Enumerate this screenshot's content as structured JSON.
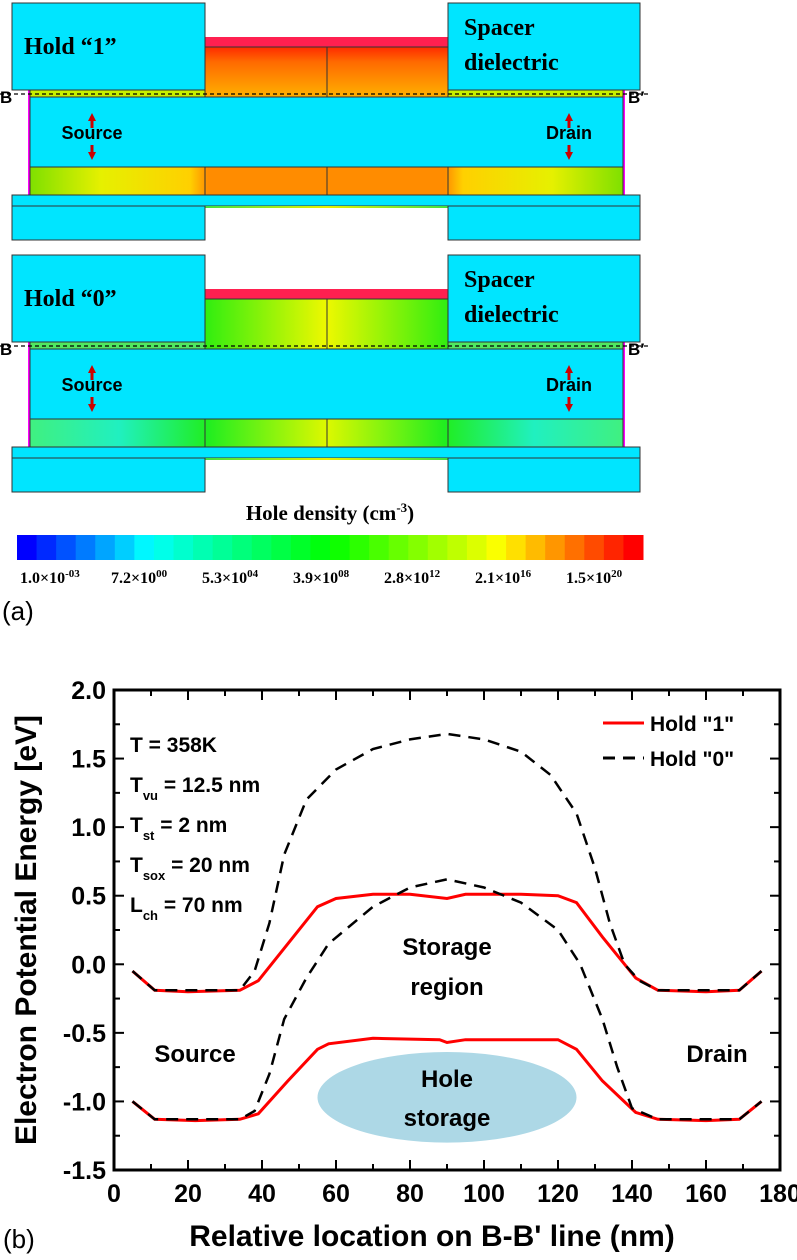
{
  "panel_a": {
    "label": "(a)",
    "devices": [
      {
        "title": "Hold “1”",
        "state": "hold1"
      },
      {
        "title": "Hold “0”",
        "state": "hold0"
      }
    ],
    "spacer_label_1": "Spacer",
    "spacer_label_2": "dielectric",
    "source_label": "Source",
    "drain_label": "Drain",
    "b_label": "B",
    "b_prime_label": "B′",
    "colorbar": {
      "title": "Hole density (cm",
      "title_sup": "-3",
      "title_end": ")",
      "ticks": [
        {
          "m": "1.0×10",
          "e": "-03"
        },
        {
          "m": "7.2×10",
          "e": "00"
        },
        {
          "m": "5.3×10",
          "e": "04"
        },
        {
          "m": "3.9×10",
          "e": "08"
        },
        {
          "m": "2.8×10",
          "e": "12"
        },
        {
          "m": "2.1×10",
          "e": "16"
        },
        {
          "m": "1.5×10",
          "e": "20"
        }
      ]
    },
    "colors": {
      "dielectric": "#00e5ff",
      "gate_oxide": "#ff2050",
      "border": "#ff00ff",
      "arrow": "#cc0000"
    }
  },
  "panel_b": {
    "label": "(b)"
  },
  "chart_data": {
    "type": "line",
    "xlabel": "Relative location on B-B' line (nm)",
    "ylabel": "Electron Potential Energy [eV]",
    "xlim": [
      0,
      180
    ],
    "ylim": [
      -1.5,
      2.0
    ],
    "xticks": [
      0,
      20,
      40,
      60,
      80,
      100,
      120,
      140,
      160,
      180
    ],
    "yticks": [
      -1.5,
      -1.0,
      -0.5,
      0.0,
      0.5,
      1.0,
      1.5,
      2.0
    ],
    "ytick_labels": [
      "-1.5",
      "-1.0",
      "-0.5",
      "0.0",
      "0.5",
      "1.0",
      "1.5",
      "2.0"
    ],
    "legend_position": "top-right",
    "annotations": {
      "params": [
        {
          "main": "T = 358K",
          "sub": "",
          "rest": ""
        },
        {
          "main": "T",
          "sub": "vu",
          "rest": " = 12.5 nm"
        },
        {
          "main": "T",
          "sub": "st",
          "rest": " = 2 nm"
        },
        {
          "main": "T",
          "sub": "sox",
          "rest": " = 20 nm"
        },
        {
          "main": "L",
          "sub": "ch",
          "rest": " = 70 nm"
        }
      ],
      "storage_1": "Storage",
      "storage_2": "region",
      "source": "Source",
      "drain": "Drain",
      "hole_1": "Hole",
      "hole_2": "storage"
    },
    "series": [
      {
        "name": "Hold \"1\"",
        "style": "solid",
        "color": "#ff0000",
        "legend": true,
        "band": "conduction",
        "x": [
          5,
          11,
          20,
          34,
          39,
          47,
          55,
          60,
          70,
          80,
          90,
          95,
          110,
          120,
          125,
          132,
          141,
          147,
          160,
          169,
          175
        ],
        "y": [
          -0.05,
          -0.19,
          -0.2,
          -0.19,
          -0.12,
          0.15,
          0.42,
          0.48,
          0.51,
          0.51,
          0.48,
          0.51,
          0.51,
          0.5,
          0.45,
          0.2,
          -0.1,
          -0.19,
          -0.2,
          -0.19,
          -0.05
        ]
      },
      {
        "name": "Hold \"0\"",
        "style": "dashed",
        "color": "#000000",
        "legend": true,
        "band": "conduction",
        "x": [
          5,
          11,
          34,
          38,
          42,
          46,
          52,
          60,
          70,
          80,
          90,
          100,
          110,
          118,
          125,
          130,
          134,
          138,
          142,
          147,
          169,
          175
        ],
        "y": [
          -0.05,
          -0.19,
          -0.19,
          -0.05,
          0.3,
          0.8,
          1.2,
          1.42,
          1.57,
          1.64,
          1.68,
          1.64,
          1.55,
          1.38,
          1.1,
          0.7,
          0.3,
          0.0,
          -0.12,
          -0.19,
          -0.19,
          -0.05
        ]
      },
      {
        "name": "Hold \"1\"",
        "style": "solid",
        "color": "#ff0000",
        "legend": false,
        "band": "valence",
        "x": [
          5,
          11,
          22,
          34,
          39,
          47,
          55,
          58,
          70,
          88,
          90,
          95,
          120,
          125,
          132,
          141,
          147,
          160,
          169,
          175
        ],
        "y": [
          -1.0,
          -1.13,
          -1.14,
          -1.13,
          -1.09,
          -0.85,
          -0.62,
          -0.58,
          -0.54,
          -0.55,
          -0.57,
          -0.55,
          -0.55,
          -0.62,
          -0.85,
          -1.08,
          -1.13,
          -1.14,
          -1.13,
          -1.0
        ]
      },
      {
        "name": "Hold \"0\"",
        "style": "dashed",
        "color": "#000000",
        "legend": false,
        "band": "valence",
        "x": [
          5,
          11,
          34,
          38,
          42,
          46,
          52,
          58,
          70,
          80,
          90,
          100,
          110,
          120,
          126,
          132,
          136,
          140,
          147,
          169,
          175
        ],
        "y": [
          -1.0,
          -1.13,
          -1.13,
          -1.07,
          -0.8,
          -0.4,
          -0.1,
          0.15,
          0.42,
          0.56,
          0.62,
          0.56,
          0.45,
          0.25,
          0.0,
          -0.4,
          -0.75,
          -1.05,
          -1.13,
          -1.13,
          -1.0
        ]
      }
    ]
  }
}
